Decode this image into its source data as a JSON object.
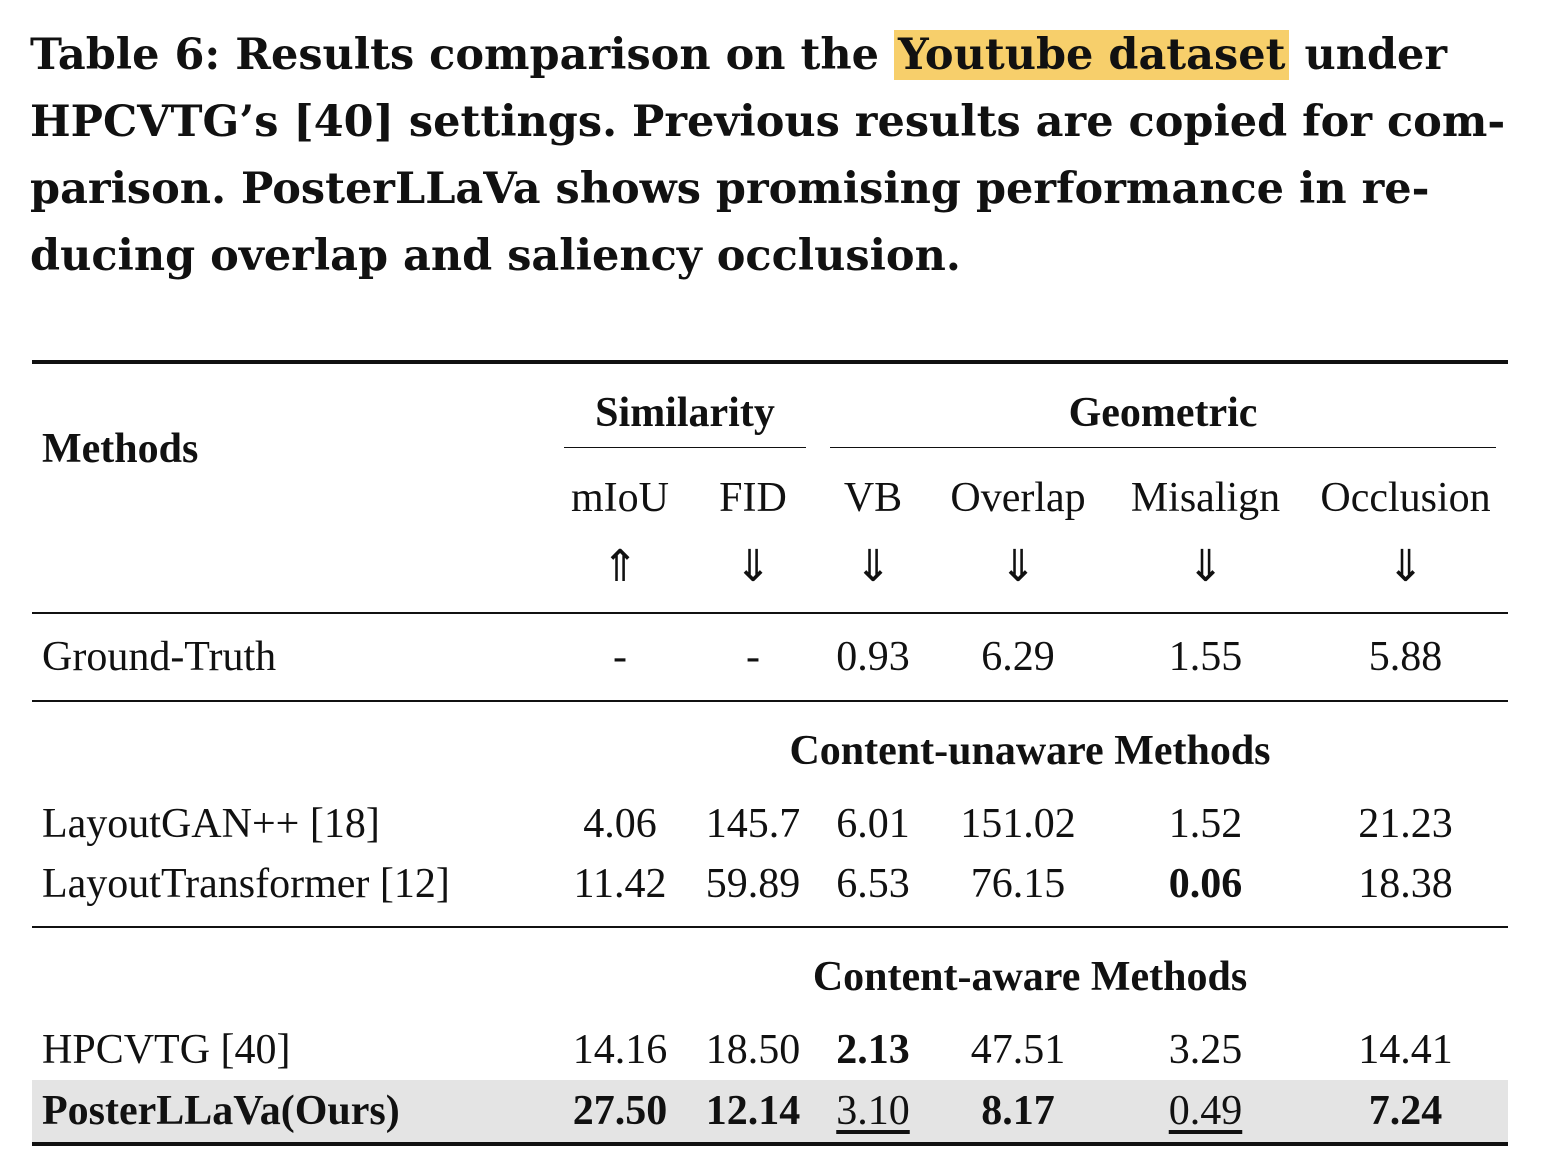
{
  "caption": {
    "prefix": "Table 6: Results comparison on the ",
    "highlight": "Youtube dataset",
    "suffix": " under HPCVTG’s [40] settings. Previous results are copied for comparison. PosterLLaVa shows promising performance in reducing overlap and saliency occlusion.",
    "line1_a": "Table 6: Results comparison on the ",
    "line1_hl": "Youtube dataset",
    "line1_b": " under",
    "line2": "HPCVTG’s [40] settings. Previous results are copied for com-",
    "line3": "parison. PosterLLaVa shows promising performance in re-",
    "line4": "ducing overlap and saliency occlusion.",
    "highlight_color": "#f7cf6b"
  },
  "table": {
    "methods_header": "Methods",
    "groups": [
      {
        "label": "Similarity"
      },
      {
        "label": "Geometric"
      }
    ],
    "columns": [
      "mIoU",
      "FID",
      "VB",
      "Overlap",
      "Misalign",
      "Occlusion"
    ],
    "arrows": [
      "⇑",
      "⇓",
      "⇓",
      "⇓",
      "⇓",
      "⇓"
    ],
    "ground_truth": {
      "method": "Ground-Truth",
      "values": [
        "-",
        "-",
        "0.93",
        "6.29",
        "1.55",
        "5.88"
      ]
    },
    "sections": [
      {
        "title": "Content-unaware Methods",
        "rows": [
          {
            "method": "LayoutGAN++ [18]",
            "values": [
              "4.06",
              "145.7",
              "6.01",
              "151.02",
              "1.52",
              "21.23"
            ]
          },
          {
            "method": "LayoutTransformer [12]",
            "values": [
              "11.42",
              "59.89",
              "6.53",
              "76.15",
              "0.06",
              "18.38"
            ]
          }
        ]
      },
      {
        "title": "Content-aware Methods",
        "rows": [
          {
            "method": "HPCVTG [40]",
            "values": [
              "14.16",
              "18.50",
              "2.13",
              "47.51",
              "3.25",
              "14.41"
            ]
          },
          {
            "method": "PosterLLaVa(Ours)",
            "values": [
              "27.50",
              "12.14",
              "3.10",
              "8.17",
              "0.49",
              "7.24"
            ]
          }
        ]
      }
    ],
    "highlight_row_color": "#e4e4e4"
  }
}
